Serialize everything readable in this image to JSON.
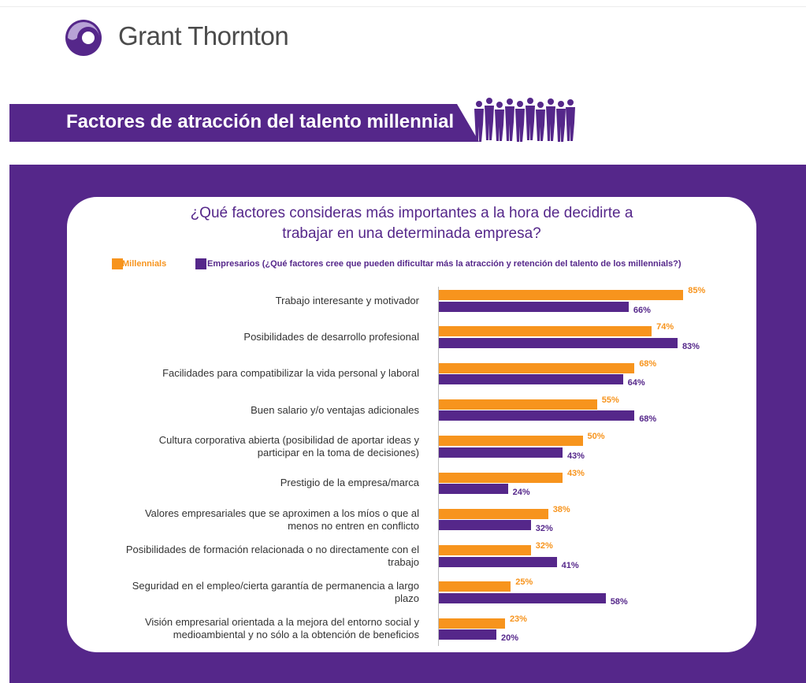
{
  "brand": {
    "name": "Grant Thornton",
    "color": "#55278a"
  },
  "banner": {
    "title": "Factores de atracción del talento millennial"
  },
  "colors": {
    "millennials": "#f7941d",
    "empresarios": "#55278a",
    "panel": "#55278a"
  },
  "chart_data": {
    "type": "bar",
    "orientation": "horizontal",
    "title_lines": [
      "¿Qué factores consideras más importantes a la hora de decidirte a",
      "trabajar en una determinada empresa?"
    ],
    "legend_position": "top",
    "series": [
      {
        "name": "Millennials",
        "color": "#f7941d",
        "values": [
          85,
          74,
          68,
          55,
          50,
          43,
          38,
          32,
          25,
          23
        ]
      },
      {
        "name": "Empresarios (¿Qué factores cree que pueden dificultar más la atracción y retención del talento de los millennials?)",
        "color": "#55278a",
        "values": [
          66,
          83,
          64,
          68,
          43,
          24,
          32,
          41,
          58,
          20
        ]
      }
    ],
    "value_suffix": "%",
    "categories": [
      [
        "Trabajo interesante y motivador"
      ],
      [
        "Posibilidades de desarrollo profesional"
      ],
      [
        "Facilidades para compatibilizar la vida personal y laboral"
      ],
      [
        "Buen salario y/o ventajas adicionales"
      ],
      [
        "Cultura corporativa abierta (posibilidad de aportar ideas y",
        "participar en la toma de decisiones)"
      ],
      [
        "Prestigio de la empresa/marca"
      ],
      [
        "Valores empresariales que se aproximen a los míos o que al",
        "menos no entren en conflicto"
      ],
      [
        "Posibilidades de formación relacionada o no directamente con el",
        "trabajo"
      ],
      [
        "Seguridad en el empleo/cierta garantía de permanencia a largo",
        "plazo"
      ],
      [
        "Visión empresarial orientada a la mejora del entorno social y",
        "medioambiental y no sólo a la obtención de beneficios"
      ]
    ],
    "xlim": [
      0,
      100
    ]
  }
}
